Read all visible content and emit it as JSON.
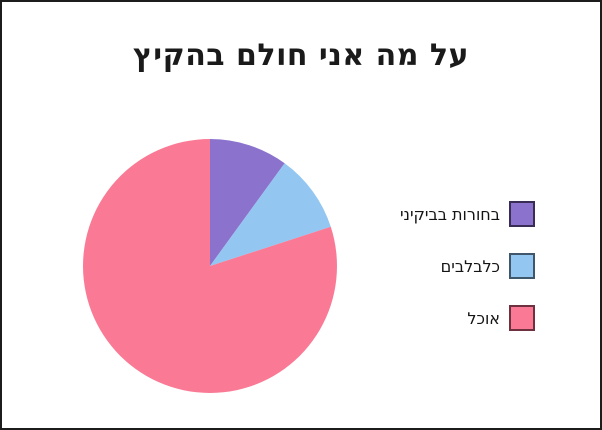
{
  "page": {
    "background_color": "#ffffff",
    "border_color": "#1c1c1c"
  },
  "chart_data": {
    "type": "pie",
    "title": "על מה אני חולם בהקיץ",
    "categories": [
      "בחורות בביקיני",
      "כלבלבים",
      "אוכל"
    ],
    "values": [
      10,
      10,
      80
    ],
    "unit": "percent",
    "colors": [
      "#8b72cd",
      "#93c6f1",
      "#fa7a95"
    ],
    "swatch_border_colors": [
      "#3a2d55",
      "#3f566b",
      "#6f3040"
    ],
    "start_angle_deg": 0,
    "direction": "clockwise",
    "legend_position": "right",
    "data_labels": false,
    "grid": false
  }
}
